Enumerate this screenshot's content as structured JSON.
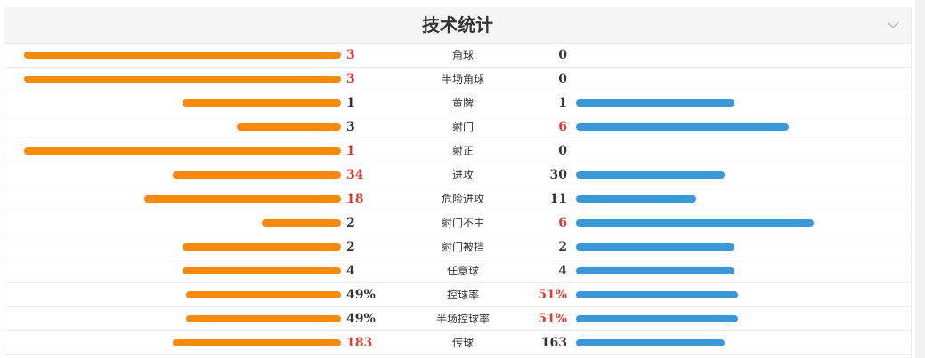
{
  "title": "技术统计",
  "colors": {
    "home_bar": "#f7890c",
    "away_bar": "#3b98d6",
    "leader_text": "#e0392f",
    "normal_text": "#333333"
  },
  "stats": [
    {
      "label": "角球",
      "home": "3",
      "away": "0",
      "home_value": 3,
      "away_value": 0,
      "home_frac": 1.0,
      "away_frac": 0.0,
      "leader": "home"
    },
    {
      "label": "半场角球",
      "home": "3",
      "away": "0",
      "home_value": 3,
      "away_value": 0,
      "home_frac": 1.0,
      "away_frac": 0.0,
      "leader": "home"
    },
    {
      "label": "黄牌",
      "home": "1",
      "away": "1",
      "home_value": 1,
      "away_value": 1,
      "home_frac": 0.5,
      "away_frac": 0.5,
      "leader": "none"
    },
    {
      "label": "射门",
      "home": "3",
      "away": "6",
      "home_value": 3,
      "away_value": 6,
      "home_frac": 0.33,
      "away_frac": 0.67,
      "leader": "away"
    },
    {
      "label": "射正",
      "home": "1",
      "away": "0",
      "home_value": 1,
      "away_value": 0,
      "home_frac": 1.0,
      "away_frac": 0.0,
      "leader": "home"
    },
    {
      "label": "进攻",
      "home": "34",
      "away": "30",
      "home_value": 34,
      "away_value": 30,
      "home_frac": 0.53,
      "away_frac": 0.47,
      "leader": "home"
    },
    {
      "label": "危险进攻",
      "home": "18",
      "away": "11",
      "home_value": 18,
      "away_value": 11,
      "home_frac": 0.62,
      "away_frac": 0.38,
      "leader": "home"
    },
    {
      "label": "射门不中",
      "home": "2",
      "away": "6",
      "home_value": 2,
      "away_value": 6,
      "home_frac": 0.25,
      "away_frac": 0.75,
      "leader": "away"
    },
    {
      "label": "射门被挡",
      "home": "2",
      "away": "2",
      "home_value": 2,
      "away_value": 2,
      "home_frac": 0.5,
      "away_frac": 0.5,
      "leader": "none"
    },
    {
      "label": "任意球",
      "home": "4",
      "away": "4",
      "home_value": 4,
      "away_value": 4,
      "home_frac": 0.5,
      "away_frac": 0.5,
      "leader": "none"
    },
    {
      "label": "控球率",
      "home": "49%",
      "away": "51%",
      "home_value": 49,
      "away_value": 51,
      "home_frac": 0.49,
      "away_frac": 0.51,
      "leader": "away"
    },
    {
      "label": "半场控球率",
      "home": "49%",
      "away": "51%",
      "home_value": 49,
      "away_value": 51,
      "home_frac": 0.49,
      "away_frac": 0.51,
      "leader": "away"
    },
    {
      "label": "传球",
      "home": "183",
      "away": "163",
      "home_value": 183,
      "away_value": 163,
      "home_frac": 0.53,
      "away_frac": 0.47,
      "leader": "home"
    }
  ]
}
